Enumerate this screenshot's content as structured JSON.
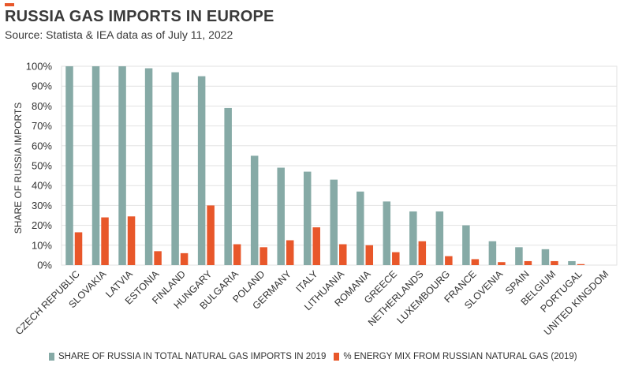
{
  "header": {
    "title": "RUSSIA GAS IMPORTS IN EUROPE",
    "subtitle": "Source: Statista & IEA data as of July 11, 2022",
    "accent_color": "#e8572a"
  },
  "chart_data": {
    "type": "bar",
    "ylabel": "SHARE OF RUSSIA IMPORTS",
    "xlabel": "",
    "ylim": [
      0,
      100
    ],
    "yticks": [
      "0%",
      "10%",
      "20%",
      "30%",
      "40%",
      "50%",
      "60%",
      "70%",
      "80%",
      "90%",
      "100%"
    ],
    "grid": true,
    "legend_position": "bottom",
    "categories": [
      "CZECH REPUBLIC",
      "SLOVAKIA",
      "LATVIA",
      "ESTONIA",
      "FINLAND",
      "HUNGARY",
      "BULGARIA",
      "POLAND",
      "GERMANY",
      "ITALY",
      "LITHUANIA",
      "ROMANIA",
      "GREECE",
      "NETHERLANDS",
      "LUXEMBOURG",
      "FRANCE",
      "SLOVENIA",
      "SPAIN",
      "BELGIUM",
      "PORTUGAL",
      "UNITED KINGDOM"
    ],
    "series": [
      {
        "name": "SHARE OF RUSSIA IN TOTAL NATURAL GAS IMPORTS IN 2019",
        "color": "#86aaa6",
        "values": [
          100,
          100,
          100,
          99,
          97,
          95,
          79,
          55,
          49,
          47,
          43,
          37,
          32,
          27,
          27,
          20,
          12,
          9,
          8,
          2,
          0
        ]
      },
      {
        "name": "% ENERGY MIX FROM RUSSIAN NATURAL GAS (2019)",
        "color": "#e8572a",
        "values": [
          16.5,
          24,
          24.5,
          7,
          6,
          30,
          10.5,
          9,
          12.5,
          19,
          10.5,
          10,
          6.5,
          12,
          4.5,
          3,
          1.5,
          2,
          2,
          0.5,
          0
        ]
      }
    ]
  }
}
